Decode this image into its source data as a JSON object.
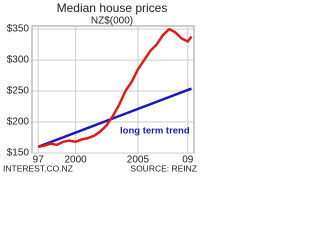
{
  "chart_data": {
    "type": "line",
    "title": "Median house prices",
    "subtitle": "NZ$(000)",
    "series": [
      {
        "color": "#e01b1b",
        "x": [
          1997,
          1997.5,
          1998,
          1998.5,
          1999,
          1999.5,
          2000,
          2000.5,
          2001,
          2001.5,
          2002,
          2002.5,
          2003,
          2003.5,
          2004,
          2004.5,
          2005,
          2005.5,
          2006,
          2006.5,
          2007,
          2007.5,
          2008,
          2008.5,
          2009,
          2009.3
        ],
        "values": [
          160,
          162,
          165,
          163,
          168,
          170,
          168,
          172,
          174,
          178,
          185,
          195,
          210,
          228,
          250,
          265,
          285,
          300,
          315,
          325,
          340,
          350,
          345,
          335,
          330,
          338
        ]
      },
      {
        "name": "long term trend",
        "color": "#1a1ab8",
        "x": [
          1997,
          2009.3
        ],
        "values": [
          160,
          254
        ]
      }
    ],
    "xlim": [
      1996.5,
      2009.5
    ],
    "xticks": [
      {
        "value": 1997,
        "label": "97"
      },
      2000,
      2005,
      {
        "value": 2009,
        "label": "09"
      }
    ],
    "ylim": [
      150,
      355
    ],
    "yticks": [
      {
        "value": 150,
        "label": "$150"
      },
      {
        "value": 200,
        "label": "$200"
      },
      {
        "value": 250,
        "label": "$250"
      },
      {
        "value": 300,
        "label": "$300"
      },
      {
        "value": 350,
        "label": "$350"
      }
    ],
    "grid": true,
    "footer_left": "INTEREST.CO.NZ",
    "footer_right": "SOURCE: REINZ"
  }
}
